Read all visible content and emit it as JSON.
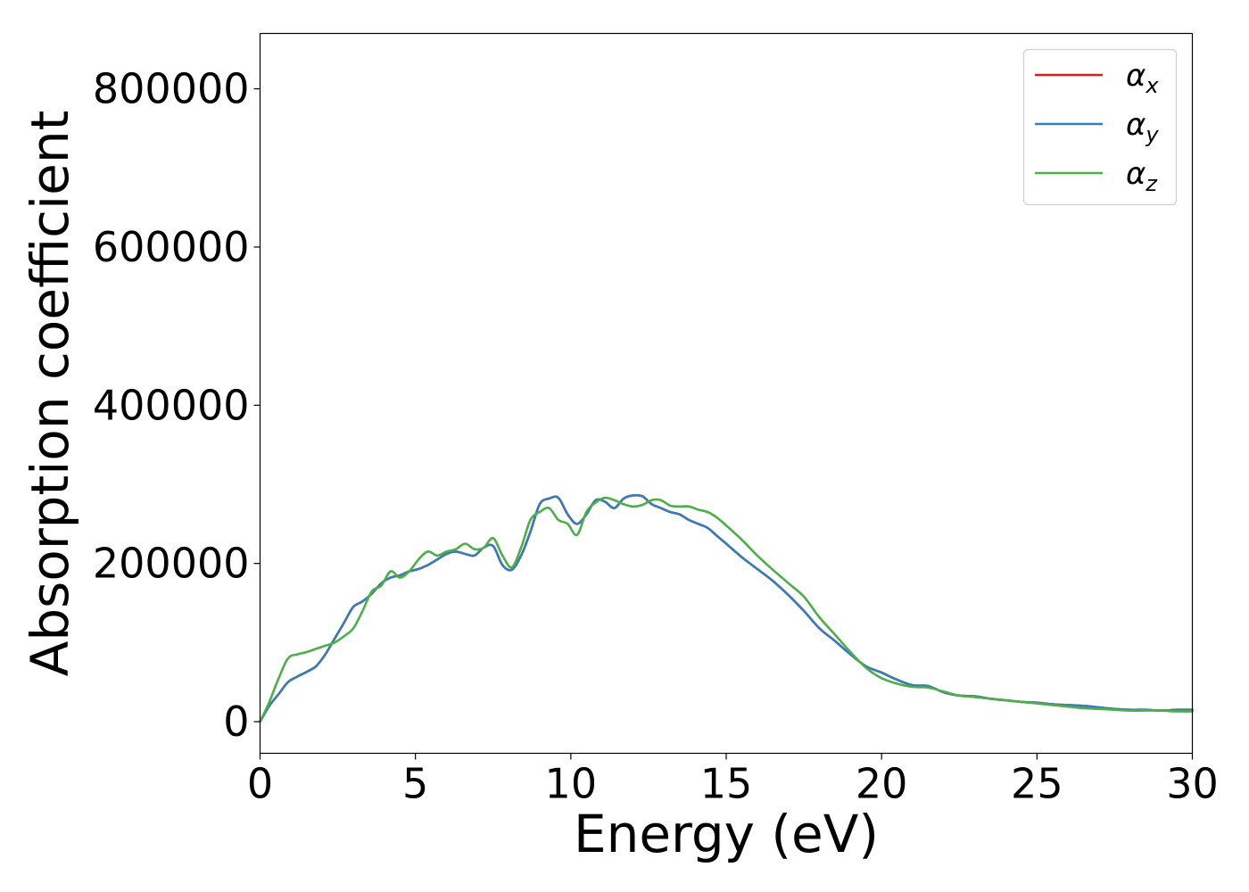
{
  "chart_data": {
    "type": "line",
    "title": "",
    "xlabel": "Energy (eV)",
    "ylabel": "Absorption coefficient",
    "xlim": [
      0,
      30
    ],
    "ylim": [
      -40000,
      870000
    ],
    "xticks": [
      0,
      5,
      10,
      15,
      20,
      25,
      30
    ],
    "xtick_labels": [
      "0",
      "5",
      "10",
      "15",
      "20",
      "25",
      "30"
    ],
    "yticks": [
      0,
      200000,
      400000,
      600000,
      800000
    ],
    "ytick_labels": [
      "0",
      "200000",
      "400000",
      "600000",
      "800000"
    ],
    "grid": false,
    "legend_position": "top-right",
    "series": [
      {
        "name": "α",
        "subscript": "x",
        "color": "#e41a1c",
        "x": [
          0,
          0.3,
          0.6,
          0.9,
          1.2,
          1.5,
          1.8,
          2.1,
          2.4,
          2.7,
          3.0,
          3.3,
          3.6,
          3.9,
          4.2,
          4.5,
          4.8,
          5.1,
          5.4,
          5.7,
          6.0,
          6.3,
          6.6,
          6.9,
          7.2,
          7.5,
          7.8,
          8.1,
          8.4,
          8.7,
          9.0,
          9.3,
          9.6,
          9.9,
          10.2,
          10.5,
          10.8,
          11.1,
          11.4,
          11.7,
          12.0,
          12.3,
          12.6,
          12.9,
          13.2,
          13.5,
          13.8,
          14.1,
          14.4,
          14.7,
          15.0,
          15.5,
          16.0,
          16.5,
          17.0,
          17.5,
          18.0,
          18.5,
          19.0,
          19.5,
          20.0,
          20.5,
          21.0,
          21.5,
          22.0,
          22.5,
          23.0,
          23.5,
          24.0,
          24.5,
          25.0,
          25.5,
          26.0,
          26.5,
          27.0,
          27.5,
          28.0,
          28.5,
          29.0,
          29.5,
          30.0
        ],
        "values": [
          0,
          20000,
          35000,
          50000,
          57000,
          63000,
          70000,
          85000,
          105000,
          125000,
          145000,
          152000,
          162000,
          175000,
          182000,
          185000,
          190000,
          193000,
          198000,
          205000,
          212000,
          215000,
          212000,
          210000,
          220000,
          222000,
          198000,
          192000,
          210000,
          240000,
          275000,
          282000,
          283000,
          262000,
          250000,
          262000,
          280000,
          278000,
          270000,
          282000,
          286000,
          285000,
          275000,
          270000,
          265000,
          262000,
          255000,
          250000,
          245000,
          235000,
          225000,
          208000,
          193000,
          178000,
          160000,
          140000,
          118000,
          102000,
          85000,
          70000,
          62000,
          53000,
          46000,
          45000,
          37000,
          33000,
          32000,
          29000,
          27000,
          25000,
          24000,
          22000,
          21000,
          20000,
          18000,
          16000,
          15000,
          15000,
          14000,
          15000,
          15000
        ]
      },
      {
        "name": "α",
        "subscript": "y",
        "color": "#377eb8",
        "x": [
          0,
          0.3,
          0.6,
          0.9,
          1.2,
          1.5,
          1.8,
          2.1,
          2.4,
          2.7,
          3.0,
          3.3,
          3.6,
          3.9,
          4.2,
          4.5,
          4.8,
          5.1,
          5.4,
          5.7,
          6.0,
          6.3,
          6.6,
          6.9,
          7.2,
          7.5,
          7.8,
          8.1,
          8.4,
          8.7,
          9.0,
          9.3,
          9.6,
          9.9,
          10.2,
          10.5,
          10.8,
          11.1,
          11.4,
          11.7,
          12.0,
          12.3,
          12.6,
          12.9,
          13.2,
          13.5,
          13.8,
          14.1,
          14.4,
          14.7,
          15.0,
          15.5,
          16.0,
          16.5,
          17.0,
          17.5,
          18.0,
          18.5,
          19.0,
          19.5,
          20.0,
          20.5,
          21.0,
          21.5,
          22.0,
          22.5,
          23.0,
          23.5,
          24.0,
          24.5,
          25.0,
          25.5,
          26.0,
          26.5,
          27.0,
          27.5,
          28.0,
          28.5,
          29.0,
          29.5,
          30.0
        ],
        "values": [
          0,
          20000,
          35000,
          50000,
          57000,
          63000,
          70000,
          85000,
          105000,
          125000,
          145000,
          152000,
          162000,
          175000,
          182000,
          185000,
          190000,
          193000,
          198000,
          205000,
          212000,
          215000,
          212000,
          210000,
          220000,
          222000,
          198000,
          192000,
          210000,
          240000,
          275000,
          282000,
          283000,
          262000,
          250000,
          262000,
          280000,
          278000,
          270000,
          282000,
          286000,
          285000,
          275000,
          270000,
          265000,
          262000,
          255000,
          250000,
          245000,
          235000,
          225000,
          208000,
          193000,
          178000,
          160000,
          140000,
          118000,
          102000,
          85000,
          70000,
          62000,
          53000,
          46000,
          45000,
          37000,
          33000,
          32000,
          29000,
          27000,
          25000,
          24000,
          22000,
          21000,
          20000,
          18000,
          16000,
          15000,
          15000,
          14000,
          15000,
          15000
        ]
      },
      {
        "name": "α",
        "subscript": "z",
        "color": "#4daf4a",
        "x": [
          0,
          0.3,
          0.6,
          0.9,
          1.2,
          1.5,
          1.8,
          2.1,
          2.4,
          2.7,
          3.0,
          3.3,
          3.6,
          3.9,
          4.2,
          4.5,
          4.8,
          5.1,
          5.4,
          5.7,
          6.0,
          6.3,
          6.6,
          6.9,
          7.2,
          7.5,
          7.8,
          8.1,
          8.4,
          8.7,
          9.0,
          9.3,
          9.6,
          9.9,
          10.2,
          10.5,
          10.8,
          11.1,
          11.4,
          11.7,
          12.0,
          12.3,
          12.6,
          12.9,
          13.2,
          13.5,
          13.8,
          14.1,
          14.4,
          14.7,
          15.0,
          15.5,
          16.0,
          16.5,
          17.0,
          17.5,
          18.0,
          18.5,
          19.0,
          19.5,
          20.0,
          20.5,
          21.0,
          21.5,
          22.0,
          22.5,
          23.0,
          23.5,
          24.0,
          24.5,
          25.0,
          25.5,
          26.0,
          26.5,
          27.0,
          27.5,
          28.0,
          28.5,
          29.0,
          29.5,
          30.0
        ],
        "values": [
          0,
          25000,
          55000,
          80000,
          85000,
          88000,
          92000,
          96000,
          100000,
          108000,
          118000,
          140000,
          165000,
          172000,
          190000,
          182000,
          190000,
          205000,
          215000,
          210000,
          215000,
          218000,
          225000,
          218000,
          220000,
          232000,
          210000,
          195000,
          220000,
          255000,
          265000,
          270000,
          255000,
          250000,
          236000,
          265000,
          277000,
          283000,
          280000,
          275000,
          272000,
          274000,
          280000,
          280000,
          273000,
          272000,
          272000,
          268000,
          265000,
          258000,
          248000,
          230000,
          210000,
          192000,
          175000,
          158000,
          132000,
          110000,
          88000,
          68000,
          55000,
          48000,
          44000,
          43000,
          38000,
          33000,
          31000,
          29000,
          27000,
          25000,
          23000,
          21000,
          19000,
          17000,
          16000,
          15000,
          14000,
          14000,
          14000,
          13000,
          13000
        ]
      }
    ]
  }
}
